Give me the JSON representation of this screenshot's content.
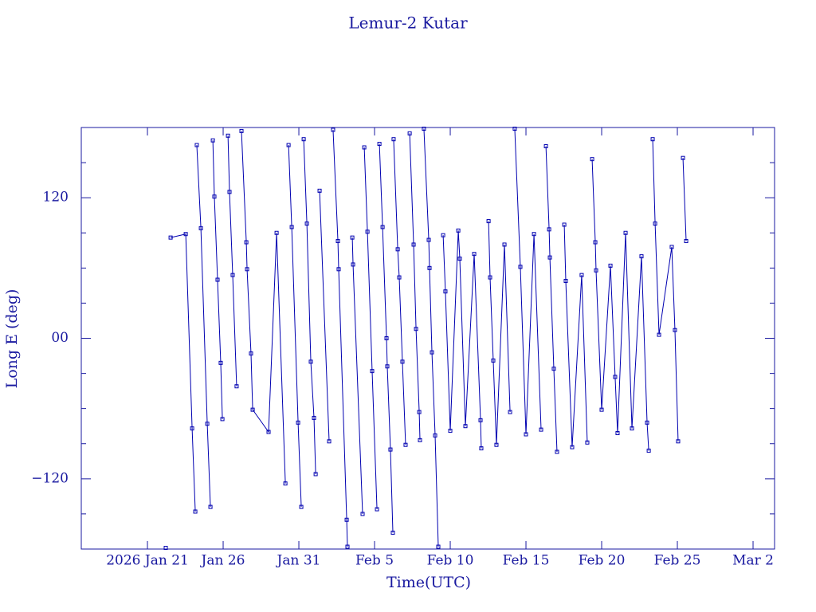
{
  "chart_data": {
    "type": "line",
    "title": "Lemur-2 Kutar",
    "xlabel": "Time(UTC)",
    "ylabel": "Long E (deg)",
    "xlim": [
      16.63,
      62.42
    ],
    "ylim": [
      -180,
      180
    ],
    "xticks": [
      {
        "value": 21,
        "label": "2026 Jan 21"
      },
      {
        "value": 26,
        "label": "Jan 26"
      },
      {
        "value": 31,
        "label": "Jan 31"
      },
      {
        "value": 36,
        "label": "Feb 5"
      },
      {
        "value": 41,
        "label": "Feb 10"
      },
      {
        "value": 46,
        "label": "Feb 15"
      },
      {
        "value": 51,
        "label": "Feb 20"
      },
      {
        "value": 56,
        "label": "Feb 25"
      },
      {
        "value": 61,
        "label": "Mar 2"
      }
    ],
    "yticks": [
      {
        "value": -120,
        "label": "−120"
      },
      {
        "value": 0,
        "label": "00"
      },
      120
    ],
    "yminorticks": [
      -150,
      -90,
      -60,
      -30,
      30,
      60,
      90,
      150
    ],
    "color": "#0000b0",
    "x": [
      22.21,
      null,
      22.53,
      23.53,
      23.95,
      24.16,
      null,
      24.26,
      24.53,
      24.95,
      25.16,
      null,
      25.32,
      25.42,
      25.63,
      25.84,
      25.95,
      null,
      26.32,
      26.42,
      26.63,
      26.89,
      null,
      27.21,
      27.53,
      27.58,
      27.84,
      27.95,
      29.0,
      29.53,
      30.11,
      null,
      30.32,
      30.53,
      30.95,
      31.16,
      null,
      31.32,
      31.53,
      31.79,
      32.0,
      32.11,
      null,
      32.37,
      33.0,
      null,
      33.26,
      33.58,
      33.63,
      34.16,
      34.21,
      null,
      34.53,
      34.58,
      35.21,
      null,
      35.32,
      35.53,
      35.84,
      36.16,
      null,
      36.32,
      36.53,
      36.79,
      36.84,
      37.05,
      37.21,
      null,
      37.26,
      37.53,
      37.63,
      37.84,
      38.05,
      null,
      38.32,
      38.58,
      38.74,
      38.95,
      39.0,
      null,
      39.26,
      39.58,
      39.63,
      39.79,
      40.0,
      40.21,
      null,
      40.53,
      40.68,
      41.0,
      41.53,
      41.63,
      42.0,
      42.58,
      43.0,
      43.05,
      null,
      43.53,
      43.63,
      43.84,
      44.05,
      44.58,
      44.95,
      null,
      45.26,
      45.63,
      46.0,
      46.53,
      47.0,
      null,
      47.32,
      47.53,
      47.58,
      47.84,
      48.05,
      null,
      48.53,
      48.63,
      49.05,
      49.68,
      50.05,
      null,
      50.37,
      50.58,
      50.63,
      51.0,
      51.58,
      51.89,
      52.05,
      52.58,
      53.0,
      53.63,
      54.0,
      54.11,
      null,
      54.37,
      54.53,
      54.79,
      55.63,
      55.84,
      56.05,
      null,
      56.37,
      56.58
    ],
    "values": [
      -179,
      null,
      86,
      89,
      -77,
      -148,
      null,
      165,
      94,
      -73,
      -144,
      null,
      169,
      121,
      50,
      -21,
      -69,
      null,
      173,
      125,
      54,
      -41,
      null,
      177,
      82,
      59,
      -13,
      -61,
      -80,
      90,
      -124,
      null,
      165,
      95,
      -72,
      -144,
      null,
      170,
      98,
      -20,
      -68,
      -116,
      null,
      126,
      -88,
      null,
      178,
      83,
      59,
      -155,
      -178,
      null,
      86,
      63,
      -150,
      null,
      163,
      91,
      -28,
      -146,
      null,
      166,
      95,
      0,
      -24,
      -95,
      -166,
      null,
      170,
      76,
      52,
      -20,
      -91,
      null,
      175,
      80,
      8,
      -63,
      -87,
      null,
      179,
      84,
      60,
      -12,
      -83,
      -178,
      null,
      88,
      40,
      -79,
      92,
      68,
      -75,
      72,
      -70,
      -94,
      null,
      100,
      52,
      -19,
      -91,
      80,
      -63,
      null,
      179,
      61,
      -82,
      89,
      -78,
      null,
      164,
      93,
      69,
      -26,
      -97,
      null,
      97,
      49,
      -93,
      54,
      -89,
      null,
      153,
      82,
      58,
      -61,
      62,
      -33,
      -81,
      90,
      -77,
      70,
      -72,
      -96,
      null,
      170,
      98,
      3,
      78,
      7,
      -88,
      null,
      154,
      83
    ]
  }
}
